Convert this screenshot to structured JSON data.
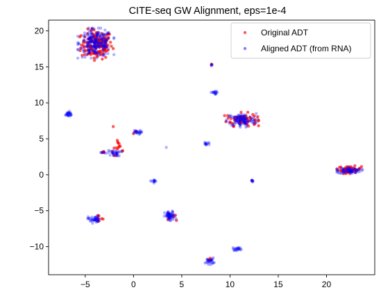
{
  "chart_data": {
    "type": "scatter",
    "title": "CITE-seq GW Alignment, eps=1e-4",
    "xlabel": "",
    "ylabel": "",
    "xlim": [
      -8.8,
      25.0
    ],
    "ylim": [
      -13.9,
      21.5
    ],
    "xticks": [
      -5,
      0,
      5,
      10,
      15,
      20
    ],
    "yticks": [
      -10,
      -5,
      0,
      5,
      10,
      15,
      20
    ],
    "grid": false,
    "legend_position": "top-right",
    "series": [
      {
        "name": "Original ADT",
        "color": "#ff0000",
        "opacity": 0.65,
        "clusters": [
          {
            "cx": -3.8,
            "cy": 18.1,
            "sx": 0.8,
            "sy": 1.0,
            "n": 160
          },
          {
            "cx": 11.2,
            "cy": 7.7,
            "sx": 0.8,
            "sy": 0.45,
            "n": 70
          },
          {
            "cx": 22.4,
            "cy": 0.7,
            "sx": 0.6,
            "sy": 0.25,
            "n": 55
          },
          {
            "cx": -1.7,
            "cy": 3.3,
            "sx": 0.35,
            "sy": 0.3,
            "n": 10
          },
          {
            "cx": -1.6,
            "cy": 4.3,
            "sx": 0.12,
            "sy": 0.25,
            "n": 6
          },
          {
            "cx": -3.1,
            "cy": 3.1,
            "sx": 0.1,
            "sy": 0.1,
            "n": 4
          },
          {
            "cx": -3.8,
            "cy": -6.1,
            "sx": 0.35,
            "sy": 0.2,
            "n": 8
          },
          {
            "cx": 3.9,
            "cy": -5.7,
            "sx": 0.25,
            "sy": 0.3,
            "n": 8
          },
          {
            "cx": 7.9,
            "cy": -12.0,
            "sx": 0.2,
            "sy": 0.2,
            "n": 5
          },
          {
            "cx": 8.1,
            "cy": 15.3,
            "sx": 0.05,
            "sy": 0.05,
            "n": 2
          },
          {
            "cx": 0.3,
            "cy": 5.9,
            "sx": 0.15,
            "sy": 0.1,
            "n": 3
          }
        ],
        "singles": [
          {
            "x": -2.1,
            "y": 6.7
          },
          {
            "x": -3.3,
            "y": -6.1
          },
          {
            "x": 12.3,
            "y": -0.8
          }
        ]
      },
      {
        "name": "Aligned ADT (from RNA)",
        "color": "#0000ff",
        "opacity": 0.3,
        "clusters": [
          {
            "cx": -3.9,
            "cy": 18.3,
            "sx": 0.85,
            "sy": 0.95,
            "n": 220
          },
          {
            "cx": 11.2,
            "cy": 7.6,
            "sx": 0.75,
            "sy": 0.45,
            "n": 110
          },
          {
            "cx": 22.4,
            "cy": 0.6,
            "sx": 0.6,
            "sy": 0.22,
            "n": 70
          },
          {
            "cx": -6.8,
            "cy": 8.4,
            "sx": 0.25,
            "sy": 0.2,
            "n": 25
          },
          {
            "cx": 0.3,
            "cy": 5.9,
            "sx": 0.25,
            "sy": 0.15,
            "n": 20
          },
          {
            "cx": -2.0,
            "cy": 3.0,
            "sx": 0.35,
            "sy": 0.2,
            "n": 30
          },
          {
            "cx": -3.1,
            "cy": 3.1,
            "sx": 0.15,
            "sy": 0.1,
            "n": 6
          },
          {
            "cx": -4.1,
            "cy": -6.2,
            "sx": 0.3,
            "sy": 0.25,
            "n": 40
          },
          {
            "cx": 3.8,
            "cy": -5.8,
            "sx": 0.28,
            "sy": 0.35,
            "n": 55
          },
          {
            "cx": 7.9,
            "cy": -12.0,
            "sx": 0.22,
            "sy": 0.22,
            "n": 25
          },
          {
            "cx": 10.8,
            "cy": -10.3,
            "sx": 0.25,
            "sy": 0.12,
            "n": 20
          },
          {
            "cx": 8.4,
            "cy": 11.4,
            "sx": 0.18,
            "sy": 0.12,
            "n": 15
          },
          {
            "cx": 7.5,
            "cy": 4.3,
            "sx": 0.15,
            "sy": 0.1,
            "n": 12
          },
          {
            "cx": 2.1,
            "cy": -0.9,
            "sx": 0.15,
            "sy": 0.12,
            "n": 12
          },
          {
            "cx": 12.3,
            "cy": -0.8,
            "sx": 0.1,
            "sy": 0.1,
            "n": 8
          },
          {
            "cx": 8.1,
            "cy": 15.3,
            "sx": 0.06,
            "sy": 0.06,
            "n": 4
          }
        ],
        "singles": [
          {
            "x": 3.4,
            "y": 3.8
          }
        ]
      }
    ]
  }
}
